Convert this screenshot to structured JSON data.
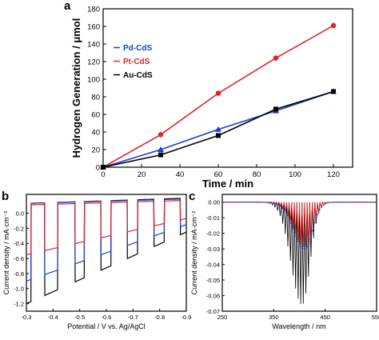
{
  "chart_data": [
    {
      "panel_label": "a",
      "type": "line",
      "xlabel": "Time / min",
      "ylabel": "Hydrogen Generation / μmol",
      "xlim": [
        0,
        130
      ],
      "ylim": [
        0,
        180
      ],
      "x_ticks": [
        "0",
        "20",
        "40",
        "60",
        "80",
        "100",
        "120"
      ],
      "y_ticks": [
        "0",
        "20",
        "40",
        "60",
        "80",
        "100",
        "120",
        "140",
        "160",
        "180"
      ],
      "legend_position": "left",
      "series": [
        {
          "name": "Pd-CdS",
          "color": "#1a3fd1",
          "marker": "triangle",
          "x": [
            0,
            30,
            60,
            90,
            120
          ],
          "y": [
            0,
            20,
            43,
            64,
            86
          ]
        },
        {
          "name": "Pt-CdS",
          "color": "#e0262b",
          "marker": "circle",
          "x": [
            0,
            30,
            60,
            90,
            120
          ],
          "y": [
            0,
            37,
            84,
            124,
            161
          ]
        },
        {
          "name": "Au-CdS",
          "color": "#000000",
          "marker": "square",
          "x": [
            0,
            30,
            60,
            90,
            120
          ],
          "y": [
            0,
            14,
            36,
            66,
            86
          ]
        }
      ]
    },
    {
      "panel_label": "b",
      "type": "line",
      "xlabel": "Potential / V vs. Ag/AgCl",
      "ylabel": "Current density / mA·cm⁻²",
      "xlim": [
        -0.3,
        -0.9
      ],
      "ylim": [
        -1.3,
        0.25
      ],
      "x_ticks": [
        "-0.3",
        "-0.4",
        "-0.5",
        "-0.6",
        "-0.7",
        "-0.8",
        "-0.9"
      ],
      "y_ticks": [
        "0.0",
        "-0.2",
        "-0.4",
        "-0.6",
        "-0.8",
        "-1.0",
        "-1.2"
      ],
      "light_on_intervals": [
        [
          -0.318,
          -0.368
        ],
        [
          -0.418,
          -0.482
        ],
        [
          -0.518,
          -0.58
        ],
        [
          -0.618,
          -0.678
        ],
        [
          -0.718,
          -0.778
        ],
        [
          -0.818,
          -0.878
        ]
      ],
      "series": [
        {
          "color": "#000000",
          "dark_current": [
            -1.2,
            -0.25
          ],
          "photocurrent": [
            0.13,
            0.2
          ]
        },
        {
          "color": "#1a3fd1",
          "dark_current": [
            -0.9,
            -0.15
          ],
          "photocurrent": [
            0.13,
            0.19
          ]
        },
        {
          "color": "#e0262b",
          "dark_current": [
            -0.55,
            -0.07
          ],
          "photocurrent": [
            0.11,
            0.17
          ]
        }
      ]
    },
    {
      "panel_label": "c",
      "type": "line",
      "xlabel": "Wavelength / nm",
      "ylabel": "Current density / mA·cm⁻²",
      "xlim": [
        250,
        550
      ],
      "ylim": [
        -0.07,
        0.005
      ],
      "x_ticks": [
        "250",
        "350",
        "450",
        "550"
      ],
      "y_ticks": [
        "0.00",
        "-0.01",
        "-0.02",
        "-0.03",
        "-0.04",
        "-0.05",
        "-0.06",
        "-0.07"
      ],
      "series": [
        {
          "color": "#000000",
          "peak_wavelength": 405,
          "peak_current": -0.066
        },
        {
          "color": "#e0262b",
          "peak_wavelength": 410,
          "peak_current": -0.029
        },
        {
          "color": "#1a3fd1",
          "peak_wavelength": 410,
          "peak_current": -0.03
        }
      ]
    }
  ]
}
